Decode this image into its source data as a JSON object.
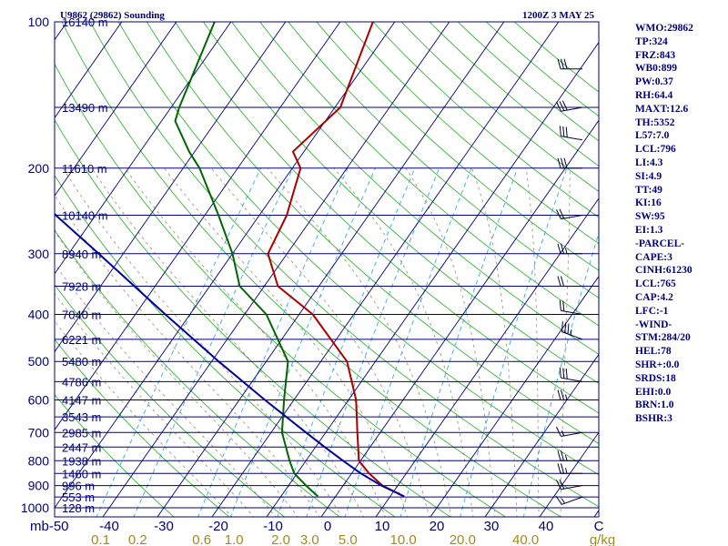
{
  "header": {
    "station_title": "U9862 (29862) Sounding",
    "valid_time": "1200Z  3 MAY 25"
  },
  "indices": [
    "WMO:29862",
    "TP:324",
    "FRZ:843",
    "WB0:899",
    "PW:0.37",
    "RH:64.4",
    "MAXT:12.6",
    "TH:5352",
    "L57:7.0",
    "LCL:796",
    "LI:4.3",
    "SI:4.9",
    "TT:49",
    "KI:16",
    "SW:95",
    "EI:1.3",
    "-PARCEL-",
    "CAPE:3",
    "CINH:61230",
    "LCL:765",
    "CAP:4.2",
    "LFC:-1",
    "-WIND-",
    "STM:284/20",
    "HEL:78",
    "SHR+:0.0",
    "SRDS:18",
    "EHI:0.0",
    "BRN:1.0",
    "BSHR:3"
  ],
  "colors": {
    "isobar": "#00007a",
    "isotherm": "#00007a",
    "dry_adiabat": "#22aa22",
    "moist_adiabat": "#9a8a70",
    "mixing_ratio": "#33aadd",
    "temperature": "#aa0000",
    "dewpoint": "#006600",
    "parcel": "#000099",
    "wind_barb": "#000033",
    "mixing_label": "#a08a20"
  },
  "chart_data": {
    "type": "skew-t",
    "title": "U9862 (29862) Sounding",
    "valid_time": "1200Z  3 MAY 25",
    "pressure_axis": {
      "unit": "mb",
      "range": [
        1000,
        100
      ],
      "log_scale": true,
      "ticks": [
        100,
        200,
        300,
        400,
        500,
        600,
        700,
        800,
        900,
        1000
      ]
    },
    "temperature_axis": {
      "unit": "C",
      "range": [
        -50,
        50
      ],
      "ticks": [
        -50,
        -40,
        -30,
        -20,
        -10,
        0,
        10,
        20,
        30,
        40
      ],
      "tick_labels": [
        "mb-50",
        "-40",
        "-30",
        "-20",
        "-10",
        "0",
        "10",
        "20",
        "30",
        "40",
        "C"
      ]
    },
    "mixing_ratio_axis": {
      "unit": "g/kg",
      "ticks": [
        0.1,
        0.2,
        0.6,
        1.0,
        2.0,
        3.0,
        5.0,
        10.0,
        20.0,
        40.0
      ],
      "tick_labels": [
        "0.1",
        "0.2",
        "0.6",
        "1.0",
        "2.0",
        "3.0",
        "5.0",
        "10.0",
        "20.0",
        "40.0",
        "g/kg"
      ]
    },
    "height_labels": [
      {
        "p": 100,
        "label": "16140 m"
      },
      {
        "p": 150,
        "label": "13490 m"
      },
      {
        "p": 200,
        "label": "11610 m"
      },
      {
        "p": 250,
        "label": "10140 m"
      },
      {
        "p": 300,
        "label": "8940 m"
      },
      {
        "p": 350,
        "label": "7928 m"
      },
      {
        "p": 400,
        "label": "7040 m"
      },
      {
        "p": 450,
        "label": "6221 m"
      },
      {
        "p": 500,
        "label": "5480 m"
      },
      {
        "p": 550,
        "label": "4786 m"
      },
      {
        "p": 600,
        "label": "4147 m"
      },
      {
        "p": 650,
        "label": "3543 m"
      },
      {
        "p": 700,
        "label": "2985 m"
      },
      {
        "p": 750,
        "label": "2447 m"
      },
      {
        "p": 800,
        "label": "1938 m"
      },
      {
        "p": 850,
        "label": "1460 m"
      },
      {
        "p": 900,
        "label": "996 m"
      },
      {
        "p": 950,
        "label": "553 m"
      },
      {
        "p": 1000,
        "label": "128 m"
      }
    ],
    "series": [
      {
        "key": "temperature",
        "points": [
          [
            948,
            12.6
          ],
          [
            900,
            7.2
          ],
          [
            850,
            3.2
          ],
          [
            800,
            -0.3
          ],
          [
            700,
            -4.2
          ],
          [
            600,
            -8.6
          ],
          [
            500,
            -15.2
          ],
          [
            400,
            -27.5
          ],
          [
            350,
            -37.5
          ],
          [
            300,
            -43.5
          ],
          [
            250,
            -45.0
          ],
          [
            200,
            -48.5
          ],
          [
            185,
            -52.0
          ],
          [
            150,
            -49.0
          ],
          [
            100,
            -54.0
          ]
        ]
      },
      {
        "key": "dewpoint",
        "points": [
          [
            948,
            -3.2
          ],
          [
            900,
            -6.8
          ],
          [
            850,
            -10.5
          ],
          [
            800,
            -13.0
          ],
          [
            700,
            -18.0
          ],
          [
            600,
            -21.8
          ],
          [
            500,
            -26.0
          ],
          [
            400,
            -36.0
          ],
          [
            350,
            -44.5
          ],
          [
            300,
            -50.0
          ],
          [
            250,
            -57.5
          ],
          [
            200,
            -67.0
          ],
          [
            185,
            -71.0
          ],
          [
            160,
            -77.5
          ],
          [
            150,
            -78.5
          ],
          [
            100,
            -83.0
          ]
        ]
      },
      {
        "key": "parcel",
        "points": [
          [
            948,
            12.6
          ],
          [
            900,
            7.0
          ],
          [
            850,
            1.7
          ],
          [
            800,
            -3.2
          ],
          [
            750,
            -8.3
          ],
          [
            700,
            -13.6
          ],
          [
            600,
            -25.3
          ],
          [
            500,
            -38.7
          ],
          [
            400,
            -54.5
          ],
          [
            300,
            -74.5
          ],
          [
            250,
            -87.3
          ],
          [
            200,
            -102.0
          ],
          [
            150,
            -120.0
          ],
          [
            100,
            -145.0
          ]
        ]
      }
    ],
    "wind_barbs": [
      {
        "p": 950,
        "dir": 250,
        "speed_kt": 15
      },
      {
        "p": 900,
        "dir": 260,
        "speed_kt": 20
      },
      {
        "p": 850,
        "dir": 270,
        "speed_kt": 25
      },
      {
        "p": 800,
        "dir": 270,
        "speed_kt": 25
      },
      {
        "p": 700,
        "dir": 260,
        "speed_kt": 15
      },
      {
        "p": 600,
        "dir": 270,
        "speed_kt": 25
      },
      {
        "p": 550,
        "dir": 280,
        "speed_kt": 30
      },
      {
        "p": 450,
        "dir": 290,
        "speed_kt": 35
      },
      {
        "p": 400,
        "dir": 280,
        "speed_kt": 20
      },
      {
        "p": 350,
        "dir": 270,
        "speed_kt": 20
      },
      {
        "p": 300,
        "dir": 270,
        "speed_kt": 25
      },
      {
        "p": 250,
        "dir": 260,
        "speed_kt": 20
      },
      {
        "p": 200,
        "dir": 270,
        "speed_kt": 30
      },
      {
        "p": 175,
        "dir": 280,
        "speed_kt": 30
      },
      {
        "p": 150,
        "dir": 260,
        "speed_kt": 30
      },
      {
        "p": 125,
        "dir": 270,
        "speed_kt": 30
      }
    ]
  }
}
